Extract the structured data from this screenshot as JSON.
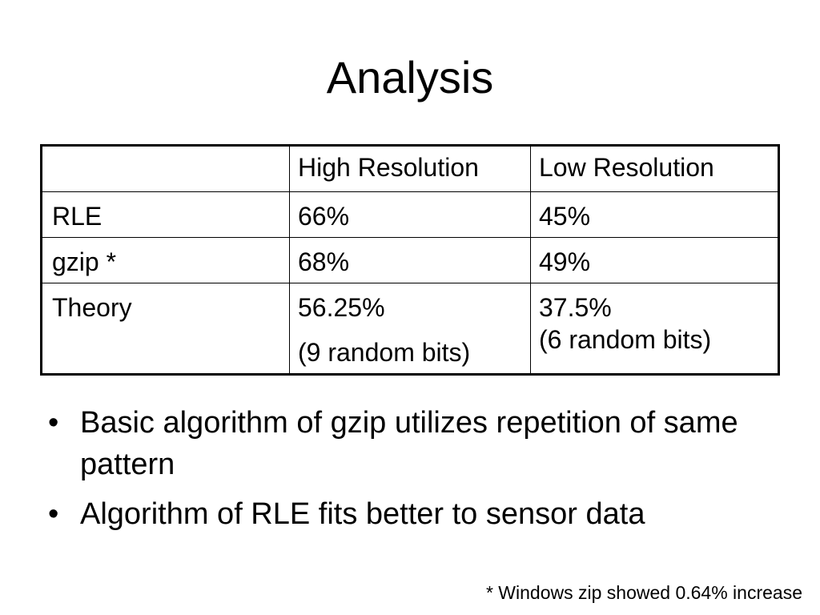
{
  "slide": {
    "title": "Analysis",
    "table": {
      "headers": [
        "",
        "High Resolution",
        "Low Resolution"
      ],
      "rows": [
        {
          "label": "RLE",
          "high": [
            "66%"
          ],
          "low": [
            "45%"
          ]
        },
        {
          "label": "gzip *",
          "high": [
            "68%"
          ],
          "low": [
            "49%"
          ]
        },
        {
          "label": "Theory",
          "high": [
            "56.25%",
            "(9 random bits)"
          ],
          "low": [
            "37.5%",
            "(6 random bits)"
          ]
        }
      ]
    },
    "bullets": [
      {
        "marker": "•",
        "text": "Basic algorithm of gzip utilizes repetition of same pattern"
      },
      {
        "marker": "•",
        "text": "Algorithm of RLE fits better to sensor data"
      }
    ],
    "footnote": "* Windows zip showed 0.64% increase"
  }
}
